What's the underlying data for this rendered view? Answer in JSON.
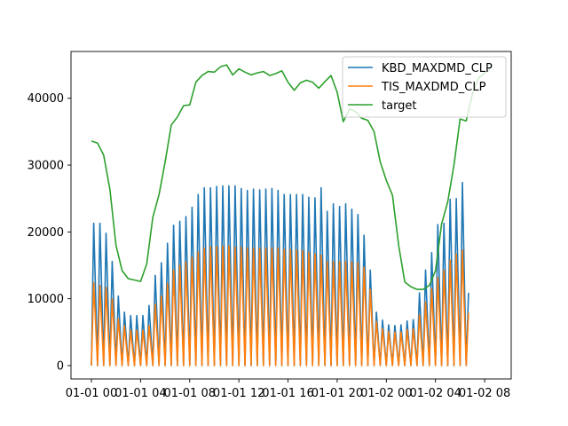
{
  "chart_data": {
    "type": "line",
    "title": "",
    "xlabel": "",
    "ylabel": "",
    "legend_position": "upper-right",
    "grid": false,
    "xlim": [
      "2000-01-01 00:00",
      "2000-01-02 08:30"
    ],
    "ylim": [
      -2000,
      47000
    ],
    "x_ticks": [
      "01-01 00",
      "01-01 04",
      "01-01 08",
      "01-01 12",
      "01-01 16",
      "01-01 20",
      "01-02 00",
      "01-02 04",
      "01-02 08"
    ],
    "y_ticks": [
      "0",
      "10000",
      "20000",
      "30000",
      "40000"
    ],
    "series": [
      {
        "name": "KBD_MAXDMD_CLP",
        "color": "#1f77b4",
        "pattern": "sawtooth",
        "x_start": "2000-01-01 00:00",
        "x_step_minutes": 30,
        "peak_values": [
          21300,
          21300,
          19800,
          15600,
          10400,
          8000,
          7500,
          7500,
          7500,
          9000,
          13500,
          15400,
          18300,
          21000,
          21600,
          22300,
          23700,
          25600,
          26600,
          26600,
          26800,
          26900,
          26900,
          26900,
          26500,
          26200,
          26400,
          26300,
          26400,
          26500,
          26200,
          25600,
          25600,
          25600,
          25600,
          25200,
          25100,
          26600,
          23100,
          24200,
          23800,
          24200,
          23400,
          22600,
          19500,
          14300,
          8000,
          6800,
          6100,
          6000,
          6100,
          6700,
          6900,
          10900,
          14300,
          16900,
          21100,
          21300,
          24900,
          25000,
          27400,
          10900
        ]
      },
      {
        "name": "TIS_MAXDMD_CLP",
        "color": "#ff7f0e",
        "pattern": "sawtooth",
        "x_start": "2000-01-01 00:00",
        "x_step_minutes": 30,
        "peak_values": [
          12400,
          12000,
          11700,
          10000,
          7000,
          6000,
          5300,
          5300,
          5300,
          6000,
          9200,
          10400,
          12300,
          14300,
          15000,
          15500,
          16200,
          17000,
          17600,
          17800,
          17800,
          17900,
          17900,
          17700,
          17700,
          17600,
          17600,
          17600,
          17600,
          17600,
          17600,
          17400,
          17400,
          17300,
          17200,
          16900,
          16700,
          16500,
          15600,
          15600,
          15600,
          15600,
          15500,
          15400,
          14700,
          11400,
          6600,
          5500,
          5100,
          5000,
          5000,
          5400,
          5500,
          7600,
          9500,
          11500,
          13200,
          14300,
          15800,
          16700,
          17300,
          7900
        ]
      },
      {
        "name": "target",
        "color": "#2ca02c",
        "pattern": "line",
        "x": [
          "2000-01-01 00:00",
          "2000-01-01 00:30",
          "2000-01-01 01:00",
          "2000-01-01 01:30",
          "2000-01-01 02:00",
          "2000-01-01 02:30",
          "2000-01-01 03:00",
          "2000-01-01 03:30",
          "2000-01-01 04:00",
          "2000-01-01 04:30",
          "2000-01-01 05:00",
          "2000-01-01 05:30",
          "2000-01-01 06:00",
          "2000-01-01 06:30",
          "2000-01-01 07:00",
          "2000-01-01 07:30",
          "2000-01-01 08:00",
          "2000-01-01 08:30",
          "2000-01-01 09:00",
          "2000-01-01 09:30",
          "2000-01-01 10:00",
          "2000-01-01 10:30",
          "2000-01-01 11:00",
          "2000-01-01 11:30",
          "2000-01-01 12:00",
          "2000-01-01 12:30",
          "2000-01-01 13:00",
          "2000-01-01 13:30",
          "2000-01-01 14:00",
          "2000-01-01 14:30",
          "2000-01-01 15:00",
          "2000-01-01 15:30",
          "2000-01-01 16:00",
          "2000-01-01 16:30",
          "2000-01-01 17:00",
          "2000-01-01 17:30",
          "2000-01-01 18:00",
          "2000-01-01 18:30",
          "2000-01-01 19:00",
          "2000-01-01 19:30",
          "2000-01-01 20:00",
          "2000-01-01 20:30",
          "2000-01-01 21:00",
          "2000-01-01 21:30",
          "2000-01-01 22:00",
          "2000-01-01 22:30",
          "2000-01-01 23:00",
          "2000-01-01 23:30",
          "2000-01-02 00:00",
          "2000-01-02 00:30",
          "2000-01-02 01:00",
          "2000-01-02 01:30",
          "2000-01-02 02:00",
          "2000-01-02 02:30",
          "2000-01-02 03:00",
          "2000-01-02 03:30",
          "2000-01-02 04:00",
          "2000-01-02 04:30",
          "2000-01-02 05:00",
          "2000-01-02 05:30",
          "2000-01-02 06:00",
          "2000-01-02 06:30",
          "2000-01-02 07:00",
          "2000-01-02 07:30",
          "2000-01-02 08:00",
          "2000-01-02 08:30"
        ],
        "values": [
          33600,
          33300,
          31500,
          26400,
          18000,
          14200,
          13000,
          12800,
          12600,
          15200,
          22200,
          25600,
          30500,
          36000,
          37200,
          38900,
          39000,
          42400,
          43400,
          44000,
          43900,
          44700,
          45000,
          43500,
          44400,
          43900,
          43500,
          43800,
          44000,
          43400,
          43700,
          44100,
          42400,
          41200,
          42300,
          42700,
          42400,
          41500,
          42500,
          43400,
          40900,
          36500,
          38400,
          38000,
          37000,
          36700,
          35000,
          30500,
          27700,
          25500,
          18000,
          12500,
          11800,
          11400,
          11400,
          12000,
          14200,
          21200,
          24500,
          30000,
          36900,
          36600,
          40600,
          43000,
          43800,
          44500
        ]
      }
    ]
  }
}
